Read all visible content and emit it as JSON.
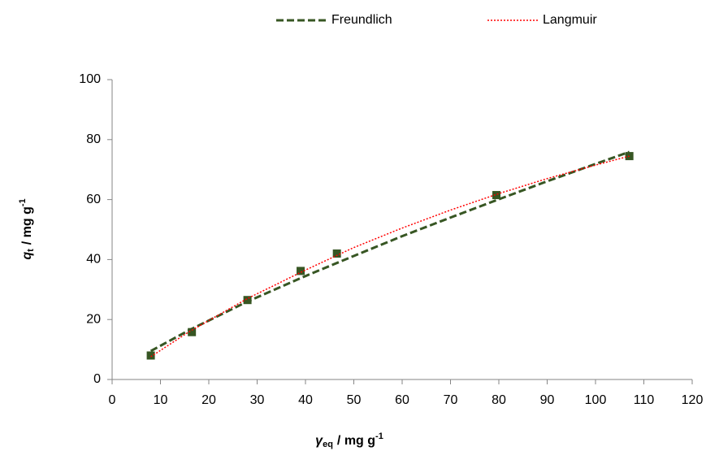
{
  "chart_data": {
    "type": "scatter",
    "legend_position": "top",
    "x_label": [
      "γ",
      "eq",
      "/ mg g",
      "-1"
    ],
    "y_label": [
      "q",
      "t",
      "/ mg g",
      "-1"
    ],
    "xlim": [
      0,
      120
    ],
    "xticks": [
      0,
      10,
      20,
      30,
      40,
      50,
      60,
      70,
      80,
      90,
      100,
      110,
      120
    ],
    "ylim": [
      0,
      100
    ],
    "yticks": [
      0,
      20,
      40,
      60,
      80,
      100
    ],
    "grid": false,
    "series": [
      {
        "type": "scatter",
        "color": "#375623",
        "x": [
          8,
          16.5,
          28,
          39,
          46.5,
          79.5,
          107
        ],
        "values": [
          8,
          15.8,
          26.5,
          36.2,
          42,
          61.5,
          74.5
        ]
      },
      {
        "name": "Freundlich",
        "type": "line",
        "style": "dashed",
        "color": "#375623",
        "x": [
          8,
          16,
          28,
          40,
          50,
          60,
          70,
          80,
          90,
          100,
          107
        ],
        "values": [
          9.5,
          16.5,
          26,
          34.5,
          41.2,
          47.8,
          54,
          60.1,
          66.1,
          71.9,
          75.9
        ]
      },
      {
        "name": "Langmuir",
        "type": "line",
        "style": "dotted",
        "color": "#ff0000",
        "x": [
          8,
          16,
          28,
          40,
          50,
          60,
          70,
          80,
          90,
          100,
          107
        ],
        "values": [
          7.6,
          16,
          27,
          36.5,
          44,
          50.5,
          56.5,
          62,
          67,
          71.5,
          74.5
        ]
      }
    ]
  }
}
